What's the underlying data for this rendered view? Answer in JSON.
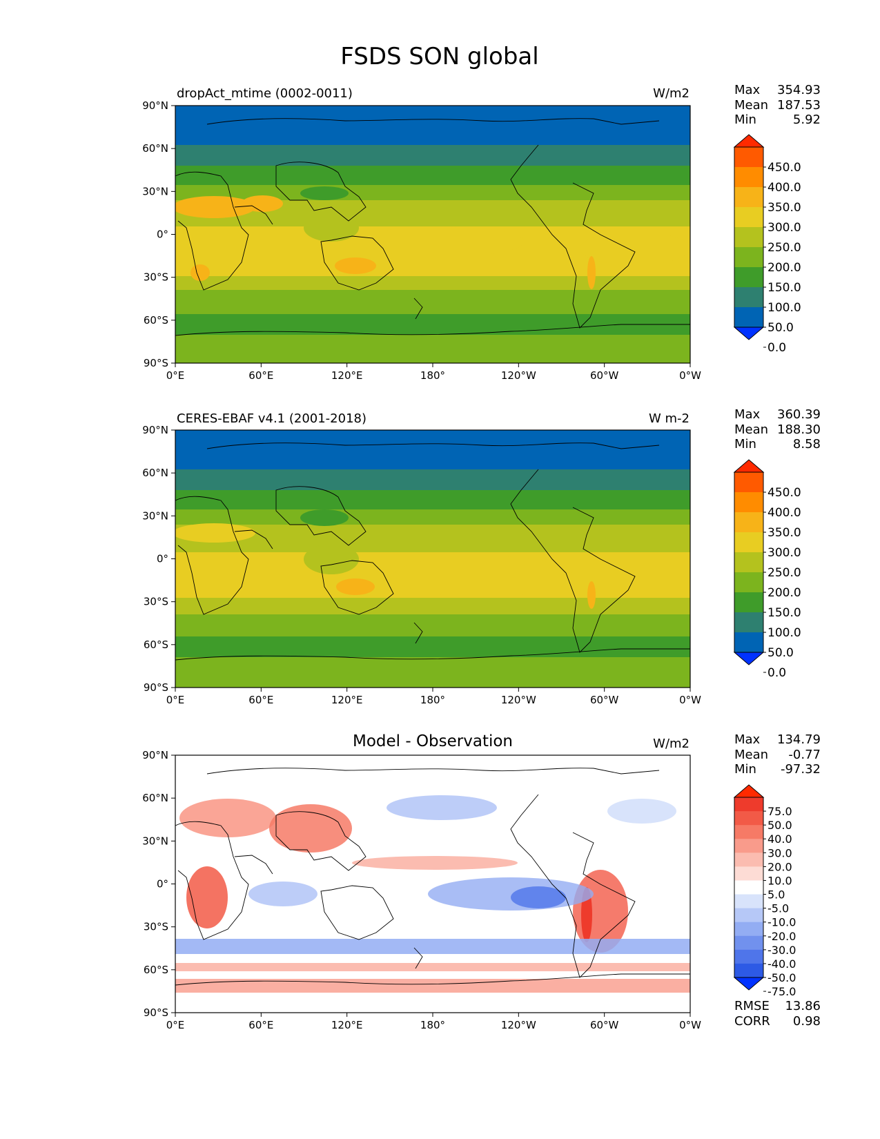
{
  "title": "FSDS SON global",
  "x_ticks": [
    "0°E",
    "60°E",
    "120°E",
    "180°",
    "120°W",
    "60°W",
    "0°W"
  ],
  "y_ticks": [
    "90°N",
    "60°N",
    "30°N",
    "0°",
    "30°S",
    "60°S",
    "90°S"
  ],
  "panels": [
    {
      "id": "model",
      "left_title": "dropAct_mtime (0002-0011)",
      "center_title": "",
      "units": "W/m2",
      "stats": [
        {
          "label": "Max",
          "value": "354.93"
        },
        {
          "label": "Mean",
          "value": "187.53"
        },
        {
          "label": "Min",
          "value": "5.92"
        }
      ],
      "colorbar": {
        "ticks": [
          "450.0",
          "400.0",
          "350.0",
          "300.0",
          "250.0",
          "200.0",
          "150.0",
          "100.0",
          "50.0",
          "0.0"
        ],
        "colors": [
          "#ff2a00",
          "#ff5a00",
          "#ff8c00",
          "#f7b318",
          "#e8cd22",
          "#b4c21e",
          "#7cb41e",
          "#3f9c2a",
          "#2e8070",
          "#0064b4",
          "#0032ff"
        ]
      },
      "field_colors": [
        "#0064b4",
        "#2e8070",
        "#3f9c2a",
        "#7cb41e",
        "#b4c21e",
        "#e8cd22",
        "#f7b318"
      ]
    },
    {
      "id": "obs",
      "left_title": "CERES-EBAF v4.1 (2001-2018)",
      "center_title": "",
      "units": "W m-2",
      "stats": [
        {
          "label": "Max",
          "value": "360.39"
        },
        {
          "label": "Mean",
          "value": "188.30"
        },
        {
          "label": "Min",
          "value": "8.58"
        }
      ],
      "colorbar": {
        "ticks": [
          "450.0",
          "400.0",
          "350.0",
          "300.0",
          "250.0",
          "200.0",
          "150.0",
          "100.0",
          "50.0",
          "0.0"
        ],
        "colors": [
          "#ff2a00",
          "#ff5a00",
          "#ff8c00",
          "#f7b318",
          "#e8cd22",
          "#b4c21e",
          "#7cb41e",
          "#3f9c2a",
          "#2e8070",
          "#0064b4",
          "#0032ff"
        ]
      },
      "field_colors": [
        "#0064b4",
        "#2e8070",
        "#3f9c2a",
        "#7cb41e",
        "#b4c21e",
        "#e8cd22",
        "#f7b318"
      ]
    },
    {
      "id": "diff",
      "left_title": "",
      "center_title": "Model - Observation",
      "units": "W/m2",
      "stats": [
        {
          "label": "Max",
          "value": "134.79"
        },
        {
          "label": "Mean",
          "value": "-0.77"
        },
        {
          "label": "Min",
          "value": "-97.32"
        }
      ],
      "bottom_stats": [
        {
          "label": "RMSE",
          "value": "13.86"
        },
        {
          "label": "CORR",
          "value": "0.98"
        }
      ],
      "colorbar": {
        "ticks": [
          "75.0",
          "50.0",
          "40.0",
          "30.0",
          "20.0",
          "10.0",
          "5.0",
          "-5.0",
          "-10.0",
          "-20.0",
          "-30.0",
          "-40.0",
          "-50.0",
          "-75.0"
        ],
        "colors": [
          "#ff2a00",
          "#ee3b2c",
          "#f25a47",
          "#f67a66",
          "#f99b8b",
          "#fbbcb0",
          "#fddcd5",
          "#ffffff",
          "#d8e3fb",
          "#b6c8f7",
          "#93adf3",
          "#7191ee",
          "#4f75ea",
          "#2d5ae5",
          "#0032ff"
        ]
      }
    }
  ]
}
